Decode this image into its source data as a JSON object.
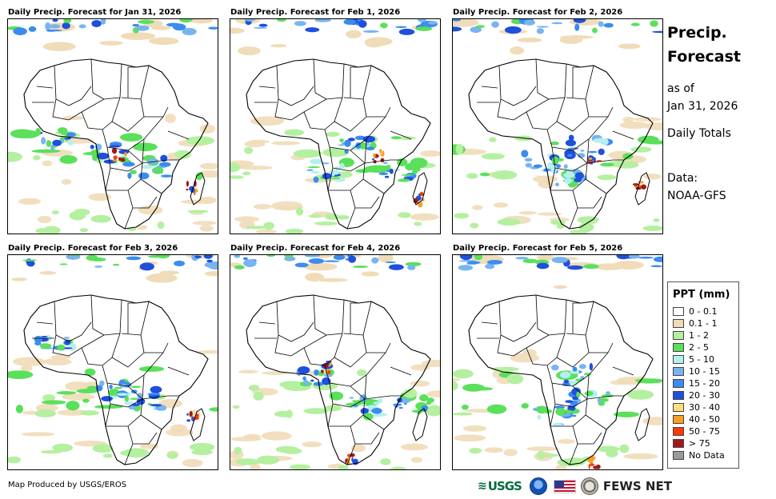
{
  "panels": [
    {
      "title": "Daily Precip. Forecast for Jan 31, 2026"
    },
    {
      "title": "Daily Precip. Forecast for Feb 1, 2026"
    },
    {
      "title": "Daily Precip. Forecast for Feb 2, 2026"
    },
    {
      "title": "Daily Precip. Forecast for Feb 3, 2026"
    },
    {
      "title": "Daily Precip. Forecast for Feb 4, 2026"
    },
    {
      "title": "Daily Precip. Forecast for Feb 5, 2026"
    }
  ],
  "side": {
    "title_line1": "Precip.",
    "title_line2": "Forecast",
    "asof_line1": "as of",
    "asof_line2": "Jan 31, 2026",
    "totals": "Daily Totals",
    "data_line1": "Data:",
    "data_line2": "NOAA-GFS"
  },
  "legend": {
    "title": "PPT (mm)",
    "items": [
      {
        "label": "0 - 0.1",
        "color": "#ffffff"
      },
      {
        "label": "0.1 - 1",
        "color": "#f0dcb8"
      },
      {
        "label": "1 - 2",
        "color": "#b4f0a0"
      },
      {
        "label": "2 - 5",
        "color": "#5ae05a"
      },
      {
        "label": "5 - 10",
        "color": "#b4f0f0"
      },
      {
        "label": "10 - 15",
        "color": "#78b4f0"
      },
      {
        "label": "15 - 20",
        "color": "#3c8cf0"
      },
      {
        "label": "20 - 30",
        "color": "#1e50dc"
      },
      {
        "label": "30 - 40",
        "color": "#f8e080"
      },
      {
        "label": "40 - 50",
        "color": "#f8a020"
      },
      {
        "label": "50 - 75",
        "color": "#f83c00"
      },
      {
        "label": "> 75",
        "color": "#a01818"
      },
      {
        "label": "No Data",
        "color": "#9a9a9a"
      }
    ]
  },
  "footer": {
    "credit": "Map Produced by USGS/EROS",
    "usgs_logo": "USGS",
    "fews_logo": "FEWS NET"
  }
}
